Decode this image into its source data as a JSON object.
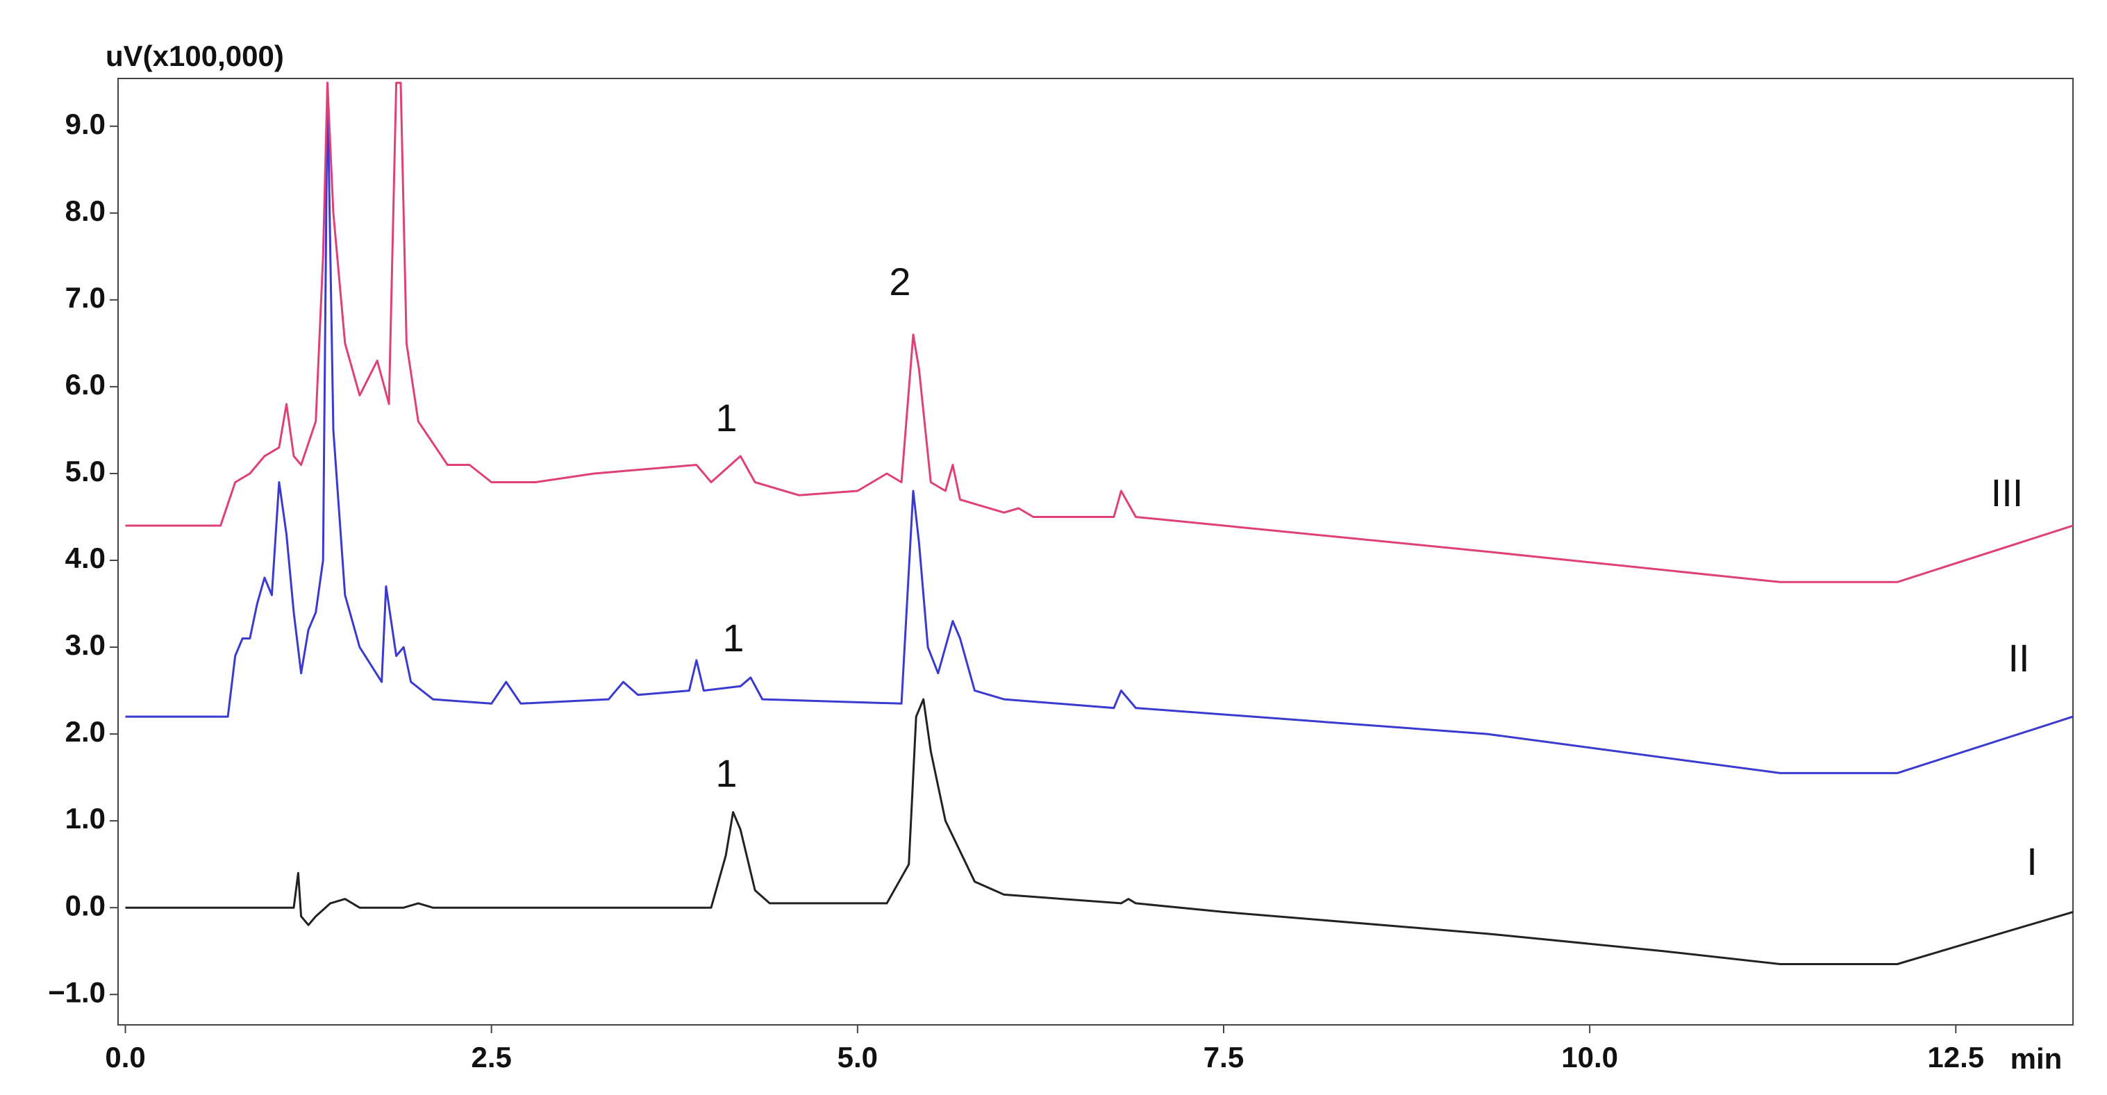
{
  "chart_data": {
    "type": "line",
    "y_label": "uV(x100,000)",
    "x_label": "min",
    "xlim": [
      -0.05,
      13.3
    ],
    "ylim": [
      -1.35,
      9.55
    ],
    "xticks": [
      {
        "value": 0,
        "label": "0.0"
      },
      2.5,
      {
        "value": 5,
        "label": "5.0"
      },
      7.5,
      {
        "value": 10,
        "label": "10.0"
      },
      12.5
    ],
    "yticks": [
      {
        "value": -1,
        "label": "−1.0"
      },
      {
        "value": 0,
        "label": "0.0"
      },
      {
        "value": 1,
        "label": "1.0"
      },
      {
        "value": 2,
        "label": "2.0"
      },
      {
        "value": 3,
        "label": "3.0"
      },
      {
        "value": 4,
        "label": "4.0"
      },
      {
        "value": 5,
        "label": "5.0"
      },
      {
        "value": 6,
        "label": "6.0"
      },
      {
        "value": 7,
        "label": "7.0"
      },
      {
        "value": 8,
        "label": "8.0"
      },
      {
        "value": 9,
        "label": "9.0"
      }
    ],
    "annotations": [
      "1",
      "1",
      "1",
      "2"
    ],
    "series": [
      {
        "name": "I",
        "color": "#222222",
        "x": [
          0,
          1.15,
          1.18,
          1.2,
          1.25,
          1.3,
          1.4,
          1.5,
          1.6,
          1.9,
          2.0,
          2.1,
          4.0,
          4.1,
          4.15,
          4.2,
          4.3,
          4.4,
          5.2,
          5.35,
          5.4,
          5.45,
          5.5,
          5.6,
          5.8,
          6.0,
          6.8,
          6.85,
          6.9,
          7.5,
          9.3,
          10.5,
          11.3,
          12.1,
          13.3
        ],
        "values": [
          0,
          0,
          0.4,
          -0.1,
          -0.2,
          -0.1,
          0.05,
          0.1,
          0,
          0,
          0.05,
          0,
          0,
          0.6,
          1.1,
          0.9,
          0.2,
          0.05,
          0.05,
          0.5,
          2.2,
          2.4,
          1.8,
          1.0,
          0.3,
          0.15,
          0.05,
          0.1,
          0.05,
          -0.05,
          -0.3,
          -0.5,
          -0.65,
          -0.65,
          -0.05
        ]
      },
      {
        "name": "II",
        "color": "#3a3ad0",
        "x": [
          0,
          0.7,
          0.75,
          0.8,
          0.85,
          0.9,
          0.95,
          1.0,
          1.05,
          1.1,
          1.15,
          1.2,
          1.25,
          1.3,
          1.35,
          1.38,
          1.42,
          1.5,
          1.6,
          1.75,
          1.78,
          1.85,
          1.9,
          1.95,
          2.1,
          2.5,
          2.6,
          2.7,
          3.3,
          3.4,
          3.5,
          3.85,
          3.9,
          3.95,
          4.2,
          4.27,
          4.35,
          5.3,
          5.38,
          5.42,
          5.48,
          5.55,
          5.65,
          5.7,
          5.8,
          6.0,
          6.75,
          6.8,
          6.9,
          9.3,
          11.3,
          12.1,
          13.3
        ],
        "values": [
          2.2,
          2.2,
          2.9,
          3.1,
          3.1,
          3.5,
          3.8,
          3.6,
          4.9,
          4.3,
          3.4,
          2.7,
          3.2,
          3.4,
          4.0,
          9.5,
          5.5,
          3.6,
          3.0,
          2.6,
          3.7,
          2.9,
          3.0,
          2.6,
          2.4,
          2.35,
          2.6,
          2.35,
          2.4,
          2.6,
          2.45,
          2.5,
          2.85,
          2.5,
          2.55,
          2.65,
          2.4,
          2.35,
          4.8,
          4.2,
          3.0,
          2.7,
          3.3,
          3.1,
          2.5,
          2.4,
          2.3,
          2.5,
          2.3,
          2.0,
          1.55,
          1.55,
          2.2
        ]
      },
      {
        "name": "III",
        "color": "#e0407a",
        "x": [
          0,
          0.65,
          0.75,
          0.85,
          0.95,
          1.05,
          1.1,
          1.15,
          1.2,
          1.3,
          1.35,
          1.38,
          1.42,
          1.5,
          1.6,
          1.72,
          1.8,
          1.85,
          1.88,
          1.92,
          2.0,
          2.2,
          2.35,
          2.5,
          2.8,
          3.2,
          3.9,
          4.0,
          4.2,
          4.3,
          4.6,
          5.0,
          5.2,
          5.3,
          5.38,
          5.42,
          5.5,
          5.6,
          5.65,
          5.7,
          6.0,
          6.1,
          6.2,
          6.75,
          6.8,
          6.9,
          9.3,
          11.3,
          12.1,
          13.3
        ],
        "values": [
          4.4,
          4.4,
          4.9,
          5.0,
          5.2,
          5.3,
          5.8,
          5.2,
          5.1,
          5.6,
          7.5,
          9.5,
          8.0,
          6.5,
          5.9,
          6.3,
          5.8,
          9.5,
          9.5,
          6.5,
          5.6,
          5.1,
          5.1,
          4.9,
          4.9,
          5.0,
          5.1,
          4.9,
          5.2,
          4.9,
          4.75,
          4.8,
          5.0,
          4.9,
          6.6,
          6.2,
          4.9,
          4.8,
          5.1,
          4.7,
          4.55,
          4.6,
          4.5,
          4.5,
          4.8,
          4.5,
          4.1,
          3.75,
          3.75,
          4.4
        ]
      }
    ]
  }
}
